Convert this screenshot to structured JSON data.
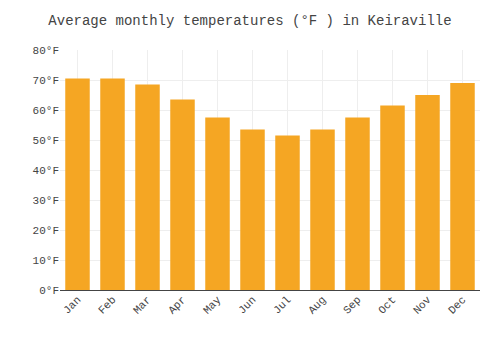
{
  "chart_data": {
    "type": "bar",
    "title": "Average monthly temperatures (°F ) in Keiraville",
    "categories": [
      "Jan",
      "Feb",
      "Mar",
      "Apr",
      "May",
      "Jun",
      "Jul",
      "Aug",
      "Sep",
      "Oct",
      "Nov",
      "Dec"
    ],
    "values": [
      70.5,
      70.5,
      68.5,
      63.5,
      57.5,
      53.5,
      51.5,
      53.5,
      57.5,
      61.5,
      65.0,
      69.0
    ],
    "color": "#F5A623",
    "ylim": [
      0,
      80
    ],
    "yticks": [
      {
        "value": 0,
        "label": "0°F"
      },
      {
        "value": 10,
        "label": "10°F"
      },
      {
        "value": 20,
        "label": "20°F"
      },
      {
        "value": 30,
        "label": "30°F"
      },
      {
        "value": 40,
        "label": "40°F"
      },
      {
        "value": 50,
        "label": "50°F"
      },
      {
        "value": 60,
        "label": "60°F"
      },
      {
        "value": 70,
        "label": "70°F"
      },
      {
        "value": 80,
        "label": "80°F"
      }
    ],
    "grid": true
  }
}
